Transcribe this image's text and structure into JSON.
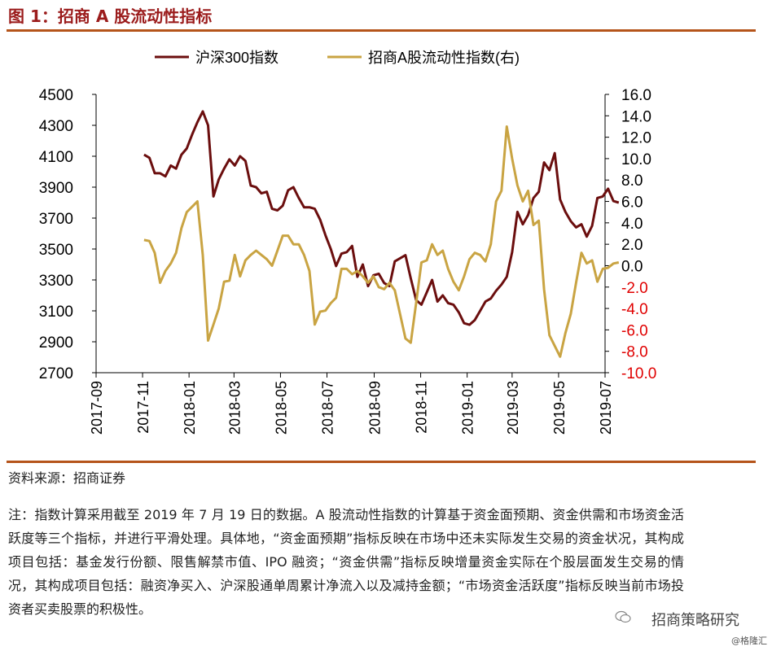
{
  "figure_title": "图 1：招商 A 股流动性指标",
  "source": "资料来源：招商证券",
  "note": "注：指数计算采用截至 2019 年 7 月 19 日的数据。A 股流动性指数的计算基于资金面预期、资金供需和市场资金活跃度等三个指标，并进行平滑处理。具体地，“资金面预期”指标反映在市场中还未实际发生交易的资金状况，其构成项目包括：基金发行份额、限售解禁市值、IPO 融资；“资金供需”指标反映增量资金实际在个股层面发生交易的情况，其构成项目包括：融资净买入、沪深股通单周累计净流入以及减持金额；“市场资金活跃度”指标反映当前市场投资者买卖股票的积极性。",
  "watermark": "招商策略研究",
  "watermark2": "@格隆汇",
  "colors": {
    "hs300": "#6B0E0E",
    "liquidity": "#C9A443",
    "neg_tick": "#E00000",
    "title": "#9B1C1C",
    "rule": "#B5541A"
  },
  "chart_data": {
    "type": "line",
    "legend_position": "top",
    "grid": false,
    "x_tick_labels": [
      "2017-09",
      "2017-11",
      "2018-01",
      "2018-03",
      "2018-05",
      "2018-07",
      "2018-09",
      "2018-11",
      "2019-01",
      "2019-03",
      "2019-05",
      "2019-07"
    ],
    "x_range_months": [
      "2017-09",
      "2019-07"
    ],
    "left_axis": {
      "range": [
        2700,
        4500
      ],
      "ticks": [
        "4500",
        "4300",
        "4100",
        "3900",
        "3700",
        "3500",
        "3300",
        "3100",
        "2900",
        "2700"
      ]
    },
    "right_axis": {
      "range": [
        -10.0,
        16.0
      ],
      "ticks": [
        "16.0",
        "14.0",
        "12.0",
        "10.0",
        "8.0",
        "6.0",
        "4.0",
        "2.0",
        "0.0",
        "-2.0",
        "-4.0",
        "-6.0",
        "-8.0",
        "-10.0"
      ]
    },
    "series": [
      {
        "name": "沪深300指数",
        "axis": "left",
        "x": [
          "2017-11-03",
          "2017-11-10",
          "2017-11-17",
          "2017-11-24",
          "2017-12-01",
          "2017-12-08",
          "2017-12-15",
          "2017-12-22",
          "2017-12-29",
          "2018-01-05",
          "2018-01-12",
          "2018-01-19",
          "2018-01-26",
          "2018-02-02",
          "2018-02-09",
          "2018-02-16",
          "2018-02-23",
          "2018-03-02",
          "2018-03-09",
          "2018-03-16",
          "2018-03-23",
          "2018-03-30",
          "2018-04-06",
          "2018-04-13",
          "2018-04-20",
          "2018-04-27",
          "2018-05-04",
          "2018-05-11",
          "2018-05-18",
          "2018-05-25",
          "2018-06-01",
          "2018-06-08",
          "2018-06-15",
          "2018-06-22",
          "2018-06-29",
          "2018-07-06",
          "2018-07-13",
          "2018-07-20",
          "2018-07-27",
          "2018-08-03",
          "2018-08-10",
          "2018-08-17",
          "2018-08-24",
          "2018-08-31",
          "2018-09-07",
          "2018-09-14",
          "2018-09-21",
          "2018-09-28",
          "2018-10-12",
          "2018-10-19",
          "2018-10-26",
          "2018-11-02",
          "2018-11-09",
          "2018-11-16",
          "2018-11-23",
          "2018-11-30",
          "2018-12-07",
          "2018-12-14",
          "2018-12-21",
          "2018-12-28",
          "2019-01-04",
          "2019-01-11",
          "2019-01-18",
          "2019-01-25",
          "2019-02-01",
          "2019-02-08",
          "2019-02-15",
          "2019-02-22",
          "2019-03-01",
          "2019-03-08",
          "2019-03-15",
          "2019-03-22",
          "2019-03-29",
          "2019-04-05",
          "2019-04-12",
          "2019-04-19",
          "2019-04-26",
          "2019-05-03",
          "2019-05-10",
          "2019-05-17",
          "2019-05-24",
          "2019-05-31",
          "2019-06-07",
          "2019-06-14",
          "2019-06-21",
          "2019-06-28",
          "2019-07-05",
          "2019-07-12",
          "2019-07-19"
        ],
        "values": [
          4110,
          4090,
          3990,
          3990,
          3970,
          4040,
          4020,
          4110,
          4150,
          4240,
          4320,
          4390,
          4300,
          3840,
          3950,
          4020,
          4080,
          4040,
          4100,
          4070,
          3910,
          3900,
          3860,
          3870,
          3760,
          3750,
          3780,
          3880,
          3900,
          3830,
          3770,
          3770,
          3760,
          3690,
          3590,
          3500,
          3390,
          3470,
          3480,
          3520,
          3320,
          3400,
          3260,
          3330,
          3340,
          3280,
          3260,
          3420,
          3460,
          3310,
          3170,
          3140,
          3220,
          3300,
          3160,
          3200,
          3150,
          3140,
          3090,
          3020,
          3010,
          3040,
          3100,
          3160,
          3180,
          3230,
          3270,
          3320,
          3480,
          3740,
          3660,
          3720,
          3830,
          3870,
          4060,
          4010,
          4120,
          3820,
          3740,
          3680,
          3640,
          3660,
          3580,
          3650,
          3830,
          3840,
          3890,
          3810,
          3800
        ]
      },
      {
        "name": "招商A股流动性指数(右)",
        "axis": "right",
        "x": [
          "2017-11-03",
          "2017-11-10",
          "2017-11-17",
          "2017-11-24",
          "2017-12-01",
          "2017-12-08",
          "2017-12-15",
          "2017-12-22",
          "2017-12-29",
          "2018-01-05",
          "2018-01-12",
          "2018-01-19",
          "2018-01-26",
          "2018-02-02",
          "2018-02-09",
          "2018-02-16",
          "2018-02-23",
          "2018-03-02",
          "2018-03-09",
          "2018-03-16",
          "2018-03-23",
          "2018-03-30",
          "2018-04-06",
          "2018-04-13",
          "2018-04-20",
          "2018-04-27",
          "2018-05-04",
          "2018-05-11",
          "2018-05-18",
          "2018-05-25",
          "2018-06-01",
          "2018-06-08",
          "2018-06-15",
          "2018-06-22",
          "2018-06-29",
          "2018-07-06",
          "2018-07-13",
          "2018-07-20",
          "2018-07-27",
          "2018-08-03",
          "2018-08-10",
          "2018-08-17",
          "2018-08-24",
          "2018-08-31",
          "2018-09-07",
          "2018-09-14",
          "2018-09-21",
          "2018-09-28",
          "2018-10-12",
          "2018-10-19",
          "2018-10-26",
          "2018-11-02",
          "2018-11-09",
          "2018-11-16",
          "2018-11-23",
          "2018-11-30",
          "2018-12-07",
          "2018-12-14",
          "2018-12-21",
          "2018-12-28",
          "2019-01-04",
          "2019-01-11",
          "2019-01-18",
          "2019-01-25",
          "2019-02-01",
          "2019-02-08",
          "2019-02-15",
          "2019-02-22",
          "2019-03-01",
          "2019-03-08",
          "2019-03-15",
          "2019-03-22",
          "2019-03-29",
          "2019-04-05",
          "2019-04-12",
          "2019-04-19",
          "2019-04-26",
          "2019-05-03",
          "2019-05-10",
          "2019-05-17",
          "2019-05-24",
          "2019-05-31",
          "2019-06-07",
          "2019-06-14",
          "2019-06-21",
          "2019-06-28",
          "2019-07-05",
          "2019-07-12",
          "2019-07-19"
        ],
        "values": [
          2.4,
          2.3,
          1.2,
          -1.6,
          -0.5,
          0.2,
          1.2,
          3.5,
          5.0,
          5.5,
          6.0,
          1.0,
          -7.0,
          -5.5,
          -4.0,
          -1.5,
          -1.4,
          1.0,
          -1.0,
          0.5,
          1.0,
          1.4,
          1.0,
          0.6,
          0,
          1.4,
          2.8,
          2.8,
          2.0,
          2.0,
          1.0,
          -0.5,
          -5.5,
          -4.3,
          -4.2,
          -3.5,
          -3.0,
          -0.3,
          -0.3,
          -0.8,
          -0.5,
          -1.0,
          -1.6,
          -1.0,
          -2.0,
          -2.2,
          -1.6,
          -2.3,
          -6.8,
          -7.2,
          -3.5,
          0.3,
          0.5,
          2.0,
          1.0,
          1.4,
          -0.3,
          -1.5,
          -2.3,
          -1.0,
          0.6,
          1.2,
          1.0,
          0.4,
          2.0,
          6.0,
          7.0,
          13.0,
          10.0,
          7.5,
          6.0,
          7.0,
          3.8,
          4.2,
          -2.2,
          -6.5,
          -7.5,
          -8.5,
          -6.3,
          -4.5,
          -1.6,
          1.2,
          0.2,
          0.5,
          -1.5,
          -0.3,
          -0.2,
          0.2,
          0.3
        ]
      }
    ]
  }
}
